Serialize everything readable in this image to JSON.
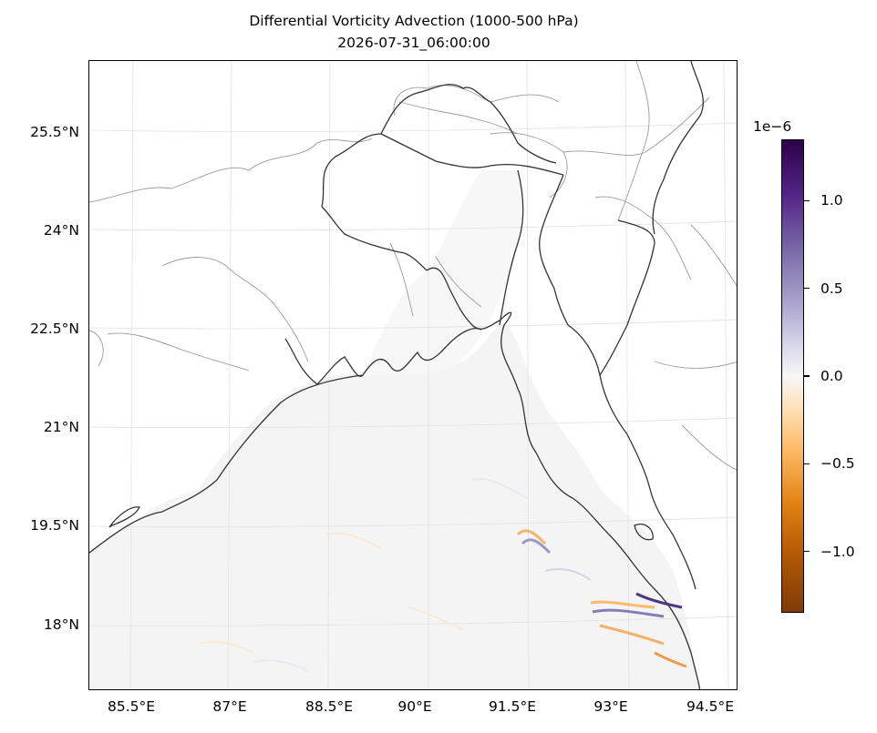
{
  "title_line1": "Differential Vorticity Advection (1000-500 hPa)",
  "title_line2": "2026-07-31_06:00:00",
  "map": {
    "region": "Bay of Bengal / Bangladesh",
    "lon_range": [
      84.95,
      95.35
    ],
    "lat_range": [
      17.0,
      26.5
    ],
    "gridlines": true,
    "coastline_color": "#333333",
    "state_border_color": "#999999",
    "hatch_fill": "#f4f4f4"
  },
  "axes": {
    "y_ticks": [
      "25.5°N",
      "24°N",
      "22.5°N",
      "21°N",
      "19.5°N",
      "18°N"
    ],
    "x_ticks": [
      "85.5°E",
      "87°E",
      "88.5°E",
      "90°E",
      "91.5°E",
      "93°E",
      "94.5°E"
    ]
  },
  "colorbar": {
    "exponent": "1e−6",
    "ticks": [
      "1.0",
      "0.5",
      "0.0",
      "−0.5",
      "−1.0"
    ],
    "tick_values": [
      1.0,
      0.5,
      0.0,
      -0.5,
      -1.0
    ],
    "range": [
      -1.35,
      1.35
    ],
    "colormap": "PuOr_r",
    "colors": {
      "max": "#2d004b",
      "zero": "#f7f7f7",
      "min": "#7f3b08"
    }
  }
}
